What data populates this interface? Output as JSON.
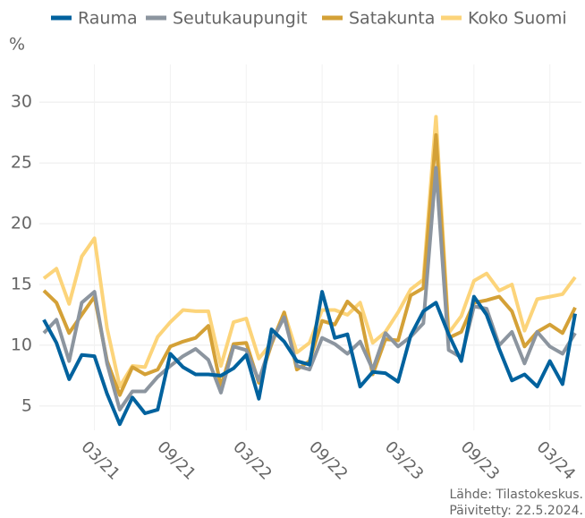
{
  "chart_data": {
    "type": "line",
    "y_label": "%",
    "source": "Lähde: Tilastokeskus.",
    "updated": "Päivitetty: 22.5.2024.",
    "categories": [
      null,
      null,
      null,
      null,
      "03/21",
      null,
      null,
      null,
      null,
      null,
      "09/21",
      null,
      null,
      null,
      null,
      null,
      "03/22",
      null,
      null,
      null,
      null,
      null,
      "09/22",
      null,
      null,
      null,
      null,
      null,
      "03/23",
      null,
      null,
      null,
      null,
      null,
      "09/23",
      null,
      null,
      null,
      null,
      null,
      "03/24",
      null,
      null
    ],
    "series": [
      {
        "name": "Koko Suomi",
        "color": "#fcd47a",
        "values": [
          15.5,
          16.3,
          13.4,
          17.3,
          18.8,
          11.4,
          6.6,
          8.3,
          8.2,
          10.7,
          11.9,
          12.9,
          12.8,
          12.8,
          8.3,
          11.9,
          12.2,
          8.9,
          10.2,
          12.7,
          9.4,
          10.2,
          12.9,
          12.9,
          12.5,
          13.5,
          10.2,
          11.1,
          12.7,
          14.6,
          15.4,
          28.8,
          11.0,
          12.4,
          15.3,
          15.9,
          14.5,
          15.0,
          11.2,
          13.8,
          14.0,
          14.2,
          15.6
        ]
      },
      {
        "name": "Satakunta",
        "color": "#d4a137",
        "values": [
          14.5,
          13.5,
          11.0,
          12.5,
          14.0,
          8.7,
          5.9,
          8.2,
          7.6,
          8.0,
          9.9,
          10.3,
          10.6,
          11.6,
          6.6,
          10.1,
          10.2,
          6.9,
          10.1,
          12.7,
          8.0,
          8.7,
          12.0,
          11.7,
          13.6,
          12.6,
          7.6,
          10.5,
          10.4,
          14.1,
          14.7,
          27.3,
          10.6,
          11.1,
          13.5,
          13.7,
          14.0,
          12.8,
          9.9,
          11.1,
          11.7,
          11.0,
          13.1
        ]
      },
      {
        "name": "Seutukaupungit",
        "color": "#8c959f",
        "values": [
          11.0,
          12.1,
          8.7,
          13.5,
          14.4,
          8.5,
          4.7,
          6.2,
          6.2,
          7.4,
          8.3,
          9.1,
          9.7,
          8.8,
          6.1,
          9.9,
          9.6,
          7.1,
          10.3,
          12.3,
          8.3,
          8.0,
          10.6,
          10.1,
          9.3,
          10.3,
          8.0,
          11.0,
          9.9,
          10.7,
          11.8,
          24.6,
          9.6,
          9.0,
          13.2,
          13.0,
          10.0,
          11.1,
          8.5,
          11.1,
          9.9,
          9.3,
          11.0
        ]
      },
      {
        "name": "Rauma",
        "color": "#00629e",
        "values": [
          12.1,
          10.2,
          7.2,
          9.2,
          9.1,
          6.0,
          3.5,
          5.7,
          4.4,
          4.7,
          9.3,
          8.2,
          7.6,
          7.6,
          7.5,
          8.1,
          9.2,
          5.6,
          11.3,
          10.3,
          8.7,
          8.4,
          14.4,
          10.6,
          10.9,
          6.6,
          7.8,
          7.7,
          7.0,
          10.8,
          12.8,
          13.5,
          10.9,
          8.7,
          14.0,
          12.5,
          9.7,
          7.1,
          7.6,
          6.6,
          8.7,
          6.8,
          12.6
        ]
      }
    ],
    "legend_order": [
      3,
      2,
      1,
      0
    ],
    "ylim": [
      3,
      32
    ],
    "yticks": [
      5,
      10,
      15,
      20,
      25,
      30
    ],
    "grid": true
  }
}
